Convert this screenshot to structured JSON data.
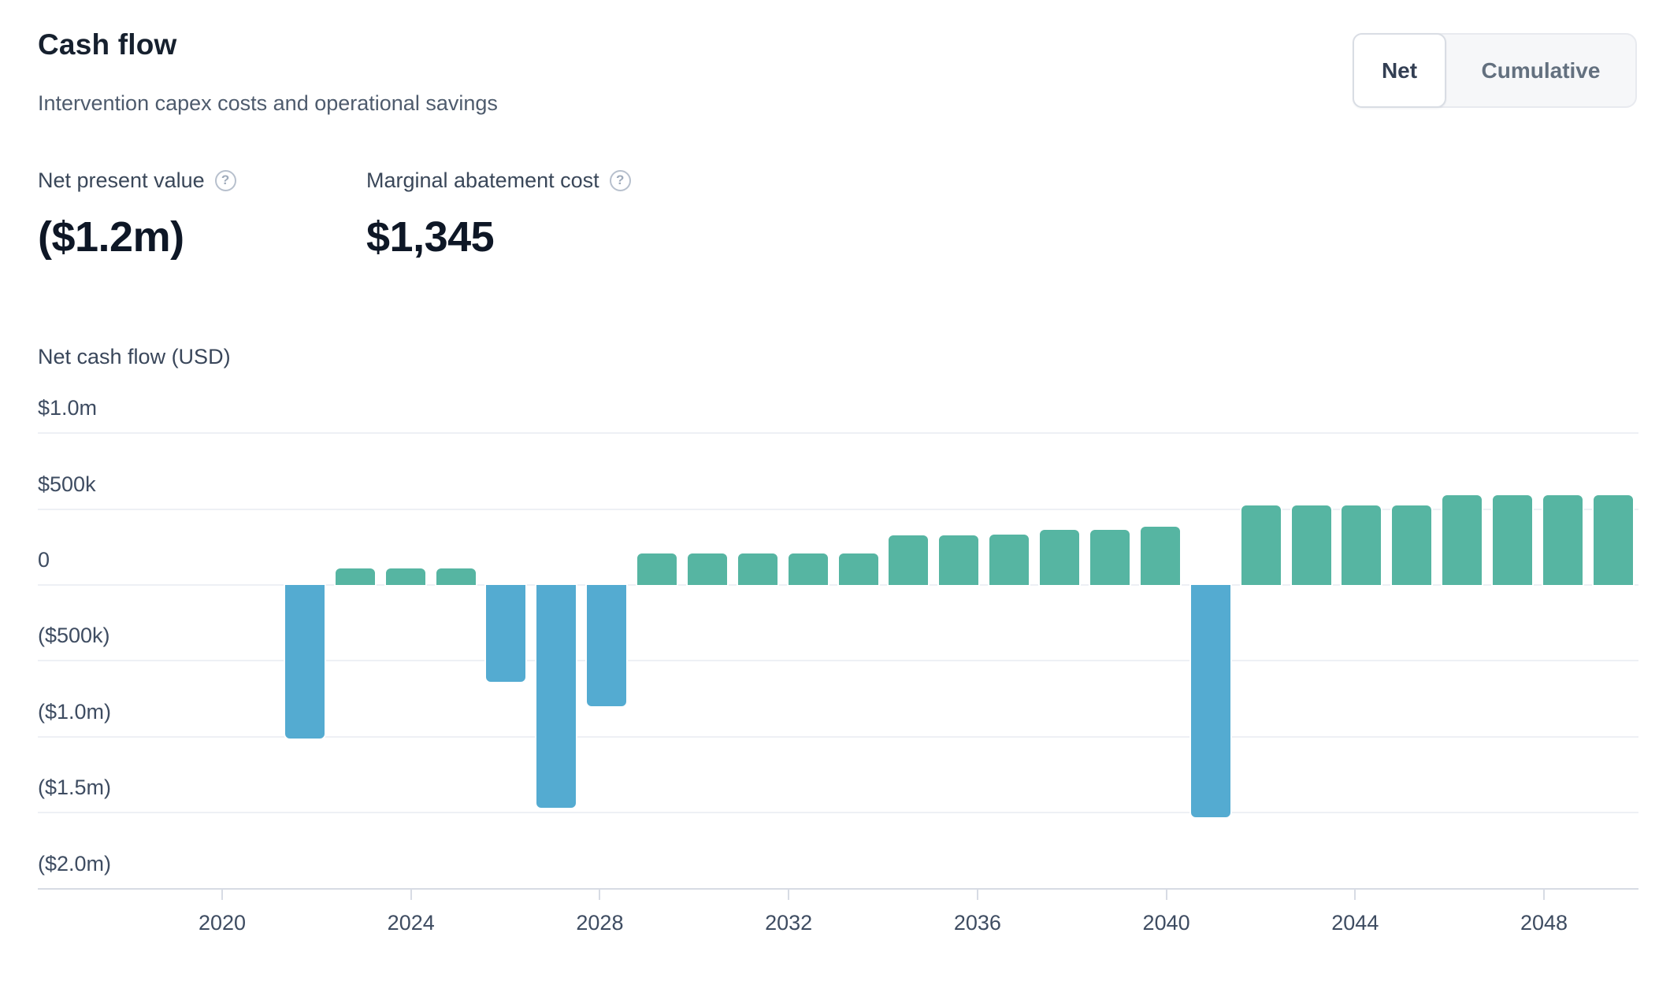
{
  "header": {
    "title": "Cash flow",
    "subtitle": "Intervention capex costs and operational savings"
  },
  "toggle": {
    "options": [
      {
        "label": "Net",
        "selected": true
      },
      {
        "label": "Cumulative",
        "selected": false
      }
    ]
  },
  "stats": [
    {
      "label": "Net present value",
      "value": "($1.2m)",
      "help_icon": "question-circle-icon",
      "help_glyph": "?"
    },
    {
      "label": "Marginal abatement cost",
      "value": "$1,345",
      "help_icon": "question-circle-icon",
      "help_glyph": "?"
    }
  ],
  "chart_data": {
    "type": "bar",
    "title": "Net cash flow (USD)",
    "ylabel": "Net cash flow (USD)",
    "xlabel": "",
    "grid": true,
    "legend": null,
    "ylim": [
      -2000000,
      1000000
    ],
    "x": [
      2022,
      2023,
      2024,
      2025,
      2026,
      2027,
      2028,
      2029,
      2030,
      2031,
      2032,
      2033,
      2034,
      2035,
      2036,
      2037,
      2038,
      2039,
      2040,
      2041,
      2042,
      2043,
      2044,
      2045,
      2046,
      2047,
      2048
    ],
    "values": [
      -1020000,
      120000,
      120000,
      120000,
      -650000,
      -1480000,
      -810000,
      220000,
      220000,
      220000,
      220000,
      220000,
      335000,
      335000,
      340000,
      375000,
      375000,
      395000,
      -1540000,
      535000,
      535000,
      535000,
      535000,
      600000,
      600000,
      600000,
      600000
    ],
    "bar_colors": {
      "positive": "#56b5a2",
      "negative": "#54abd1"
    },
    "grid_color": "#eef0f5",
    "axis_color": "#d7dbe4",
    "y_ticks": [
      {
        "label": "$1.0m",
        "value": 1000000
      },
      {
        "label": "$500k",
        "value": 500000
      },
      {
        "label": "0",
        "value": 0
      },
      {
        "label": "($500k)",
        "value": -500000
      },
      {
        "label": "($1.0m)",
        "value": -1000000
      },
      {
        "label": "($1.5m)",
        "value": -1500000
      },
      {
        "label": "($2.0m)",
        "value": -2000000
      }
    ],
    "x_ticks": [
      2020,
      2024,
      2028,
      2032,
      2036,
      2040,
      2044,
      2048
    ]
  }
}
